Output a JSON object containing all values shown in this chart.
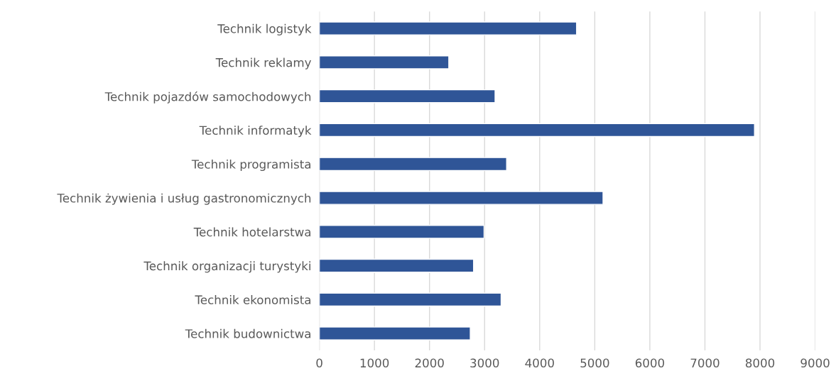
{
  "chart_data": {
    "type": "bar",
    "orientation": "horizontal",
    "categories": [
      "Technik logistyk",
      "Technik reklamy",
      "Technik pojazdów samochodowych",
      "Technik informatyk",
      "Technik programista",
      "Technik żywienia i usług gastronomicznych",
      "Technik hotelarstwa",
      "Technik organizacji turystyki",
      "Technik ekonomista",
      "Technik budownictwa"
    ],
    "values": [
      4670,
      2350,
      3190,
      7900,
      3400,
      5150,
      2990,
      2800,
      3300,
      2740
    ],
    "color": "#2f5597",
    "xlim": [
      0,
      9000
    ],
    "xticks": [
      0,
      1000,
      2000,
      3000,
      4000,
      5000,
      6000,
      7000,
      8000,
      9000
    ],
    "grid": "x"
  }
}
